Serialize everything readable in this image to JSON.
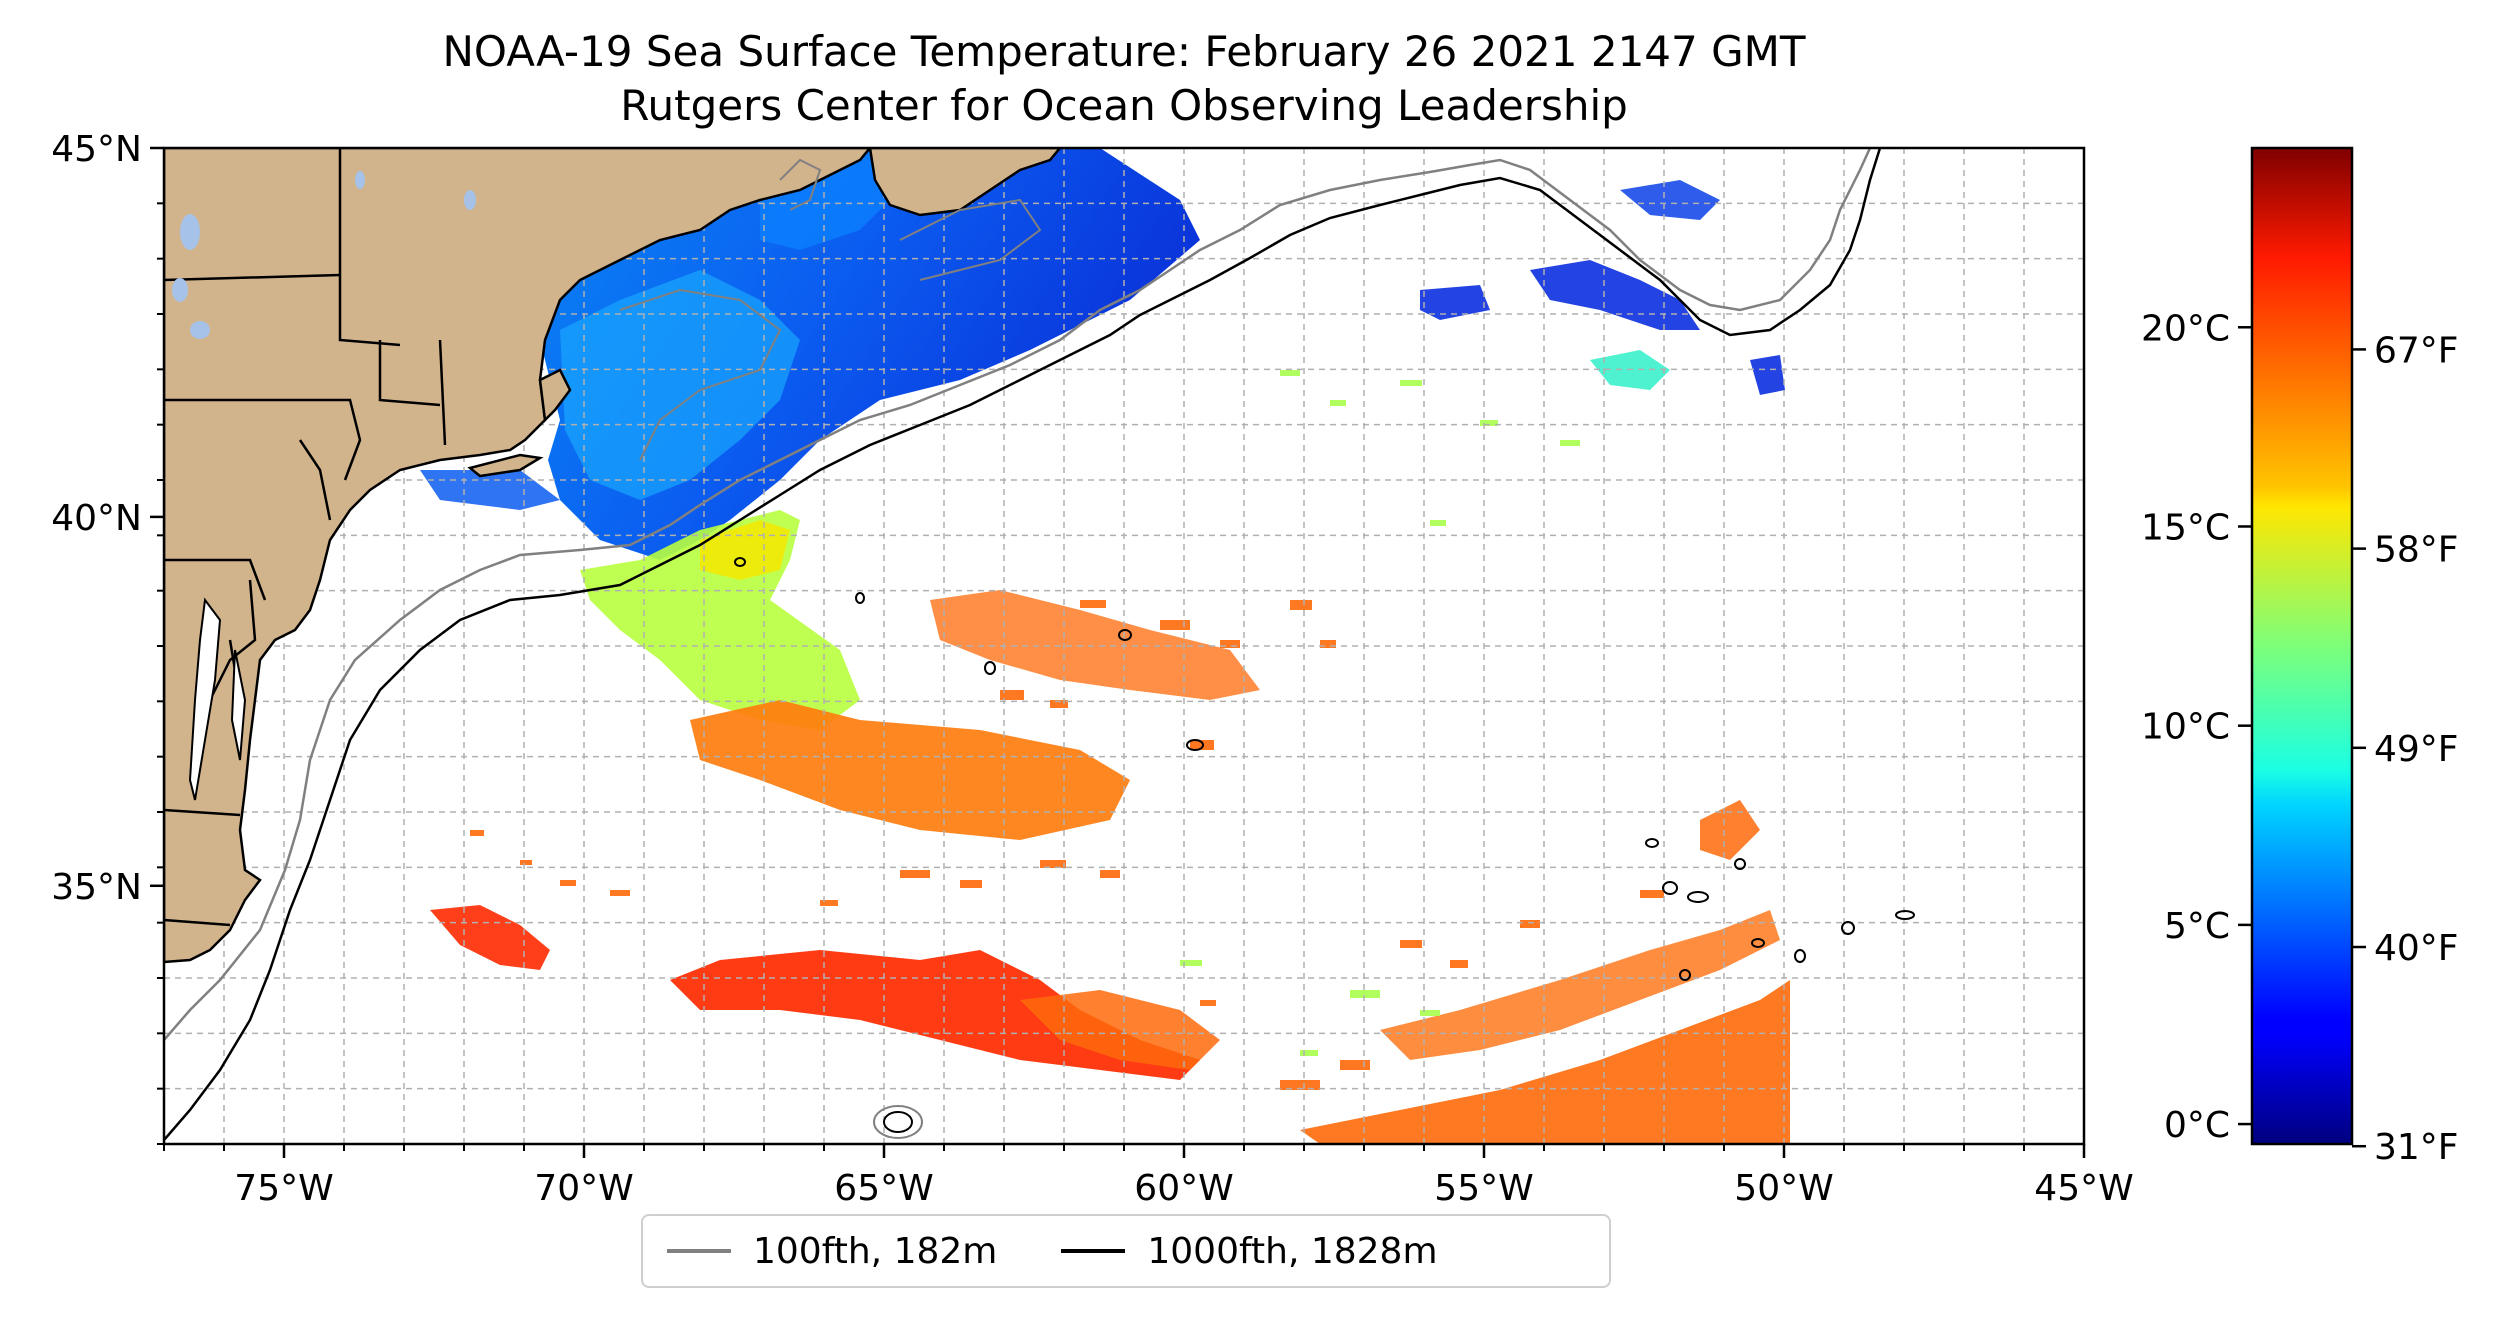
{
  "title": "NOAA-19 Sea Surface Temperature: February 26 2021 2147 GMT",
  "subtitle": "Rutgers Center for Ocean Observing Leadership",
  "map": {
    "lon_range": [
      -77,
      -45
    ],
    "lat_range": [
      31.5,
      45
    ],
    "lon_ticks": [
      {
        "value": -75,
        "label": "75°W"
      },
      {
        "value": -70,
        "label": "70°W"
      },
      {
        "value": -65,
        "label": "65°W"
      },
      {
        "value": -60,
        "label": "60°W"
      },
      {
        "value": -55,
        "label": "55°W"
      },
      {
        "value": -50,
        "label": "50°W"
      },
      {
        "value": -45,
        "label": "45°W"
      }
    ],
    "lat_ticks": [
      {
        "value": 45,
        "label": "45°N"
      },
      {
        "value": 40,
        "label": "40°N"
      },
      {
        "value": 35,
        "label": "35°N"
      }
    ],
    "grid": true,
    "colors": {
      "land": "#d2b48c",
      "lakes": "#a6c2e8",
      "isobath_100": "#808080",
      "isobath_1000": "#000000"
    }
  },
  "colorbar": {
    "colormap": "jet",
    "celsius_range": [
      -0.5,
      24.5
    ],
    "celsius_ticks": [
      {
        "value": 0,
        "label": "0°C"
      },
      {
        "value": 5,
        "label": "5°C"
      },
      {
        "value": 10,
        "label": "10°C"
      },
      {
        "value": 15,
        "label": "15°C"
      },
      {
        "value": 20,
        "label": "20°C"
      }
    ],
    "fahrenheit_ticks": [
      {
        "value": 31,
        "label": "31°F"
      },
      {
        "value": 40,
        "label": "40°F"
      },
      {
        "value": 49,
        "label": "49°F"
      },
      {
        "value": 58,
        "label": "58°F"
      },
      {
        "value": 67,
        "label": "67°F"
      }
    ]
  },
  "legend": [
    {
      "label": "100fth, 182m",
      "color": "#808080"
    },
    {
      "label": "1000fth, 1828m",
      "color": "#000000"
    }
  ]
}
